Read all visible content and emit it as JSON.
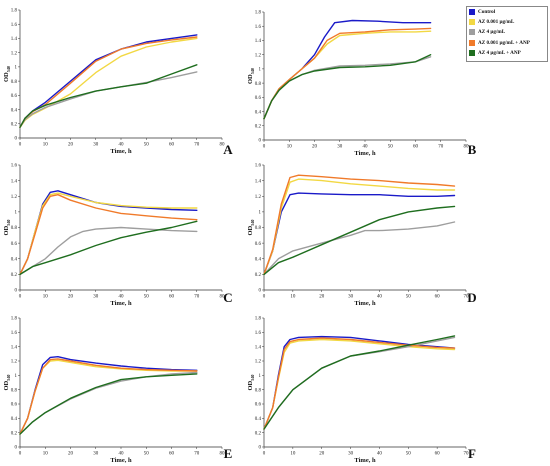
{
  "colors": {
    "control": "#1a1ac8",
    "az_low": "#f2d843",
    "az_high": "#9e9e9e",
    "az_low_anp": "#f07a2a",
    "az_high_anp": "#1f6e1f"
  },
  "legend": {
    "items": [
      {
        "label": "Control",
        "color_key": "control"
      },
      {
        "label": "AZ 0.001 µg/mL",
        "color_key": "az_low"
      },
      {
        "label": "AZ 4 µg/mL",
        "color_key": "az_high"
      },
      {
        "label": "AZ 0.001 µg/mL + ANP",
        "color_key": "az_low_anp"
      },
      {
        "label": "AZ 4 µg/mL + ANP",
        "color_key": "az_high_anp"
      }
    ]
  },
  "chart_data": [
    {
      "type": "line",
      "panel": "A",
      "xlabel": "Time, h",
      "ylabel_main": "OD",
      "ylabel_sub": "540",
      "xlim": [
        0,
        80
      ],
      "xticks": [
        0,
        10,
        20,
        30,
        40,
        50,
        60,
        70,
        80
      ],
      "ylim": [
        0,
        1.8
      ],
      "yticks": [
        0,
        0.2,
        0.4,
        0.6,
        0.8,
        1,
        1.2,
        1.4,
        1.6,
        1.8
      ],
      "series": [
        {
          "color_key": "control",
          "x": [
            0,
            2,
            5,
            10,
            20,
            30,
            40,
            50,
            60,
            70
          ],
          "y": [
            0.15,
            0.28,
            0.38,
            0.5,
            0.8,
            1.1,
            1.25,
            1.35,
            1.4,
            1.45
          ]
        },
        {
          "color_key": "az_low",
          "x": [
            0,
            2,
            5,
            10,
            20,
            30,
            40,
            50,
            60,
            70
          ],
          "y": [
            0.15,
            0.25,
            0.33,
            0.42,
            0.62,
            0.92,
            1.15,
            1.28,
            1.35,
            1.4
          ]
        },
        {
          "color_key": "az_high",
          "x": [
            0,
            2,
            5,
            10,
            20,
            30,
            40,
            50,
            60,
            70
          ],
          "y": [
            0.15,
            0.26,
            0.34,
            0.43,
            0.55,
            0.66,
            0.72,
            0.78,
            0.85,
            0.93
          ]
        },
        {
          "color_key": "az_low_anp",
          "x": [
            0,
            2,
            5,
            10,
            20,
            30,
            40,
            50,
            60,
            70
          ],
          "y": [
            0.15,
            0.28,
            0.37,
            0.47,
            0.77,
            1.08,
            1.25,
            1.33,
            1.38,
            1.42
          ]
        },
        {
          "color_key": "az_high_anp",
          "x": [
            0,
            2,
            5,
            10,
            20,
            30,
            40,
            50,
            60,
            70
          ],
          "y": [
            0.15,
            0.28,
            0.38,
            0.46,
            0.57,
            0.66,
            0.72,
            0.77,
            0.9,
            1.03
          ]
        }
      ]
    },
    {
      "type": "line",
      "panel": "B",
      "xlabel": "Time, h",
      "ylabel_main": "OD",
      "ylabel_sub": "540",
      "xlim": [
        0,
        80
      ],
      "xticks": [
        0,
        10,
        20,
        30,
        40,
        50,
        60,
        70,
        80
      ],
      "ylim": [
        0,
        1.8
      ],
      "yticks": [
        0,
        0.2,
        0.4,
        0.6,
        0.8,
        1,
        1.2,
        1.4,
        1.6,
        1.8
      ],
      "series": [
        {
          "color_key": "control",
          "x": [
            0,
            3,
            6,
            10,
            15,
            20,
            24,
            28,
            35,
            45,
            55,
            66
          ],
          "y": [
            0.3,
            0.55,
            0.72,
            0.85,
            1.0,
            1.2,
            1.45,
            1.65,
            1.68,
            1.67,
            1.65,
            1.65
          ]
        },
        {
          "color_key": "az_low",
          "x": [
            0,
            3,
            6,
            10,
            15,
            20,
            25,
            30,
            40,
            50,
            60,
            66
          ],
          "y": [
            0.3,
            0.55,
            0.72,
            0.85,
            1.0,
            1.15,
            1.35,
            1.47,
            1.5,
            1.52,
            1.52,
            1.53
          ]
        },
        {
          "color_key": "az_high",
          "x": [
            0,
            3,
            6,
            10,
            15,
            20,
            30,
            40,
            50,
            60,
            66
          ],
          "y": [
            0.3,
            0.55,
            0.7,
            0.83,
            0.92,
            0.98,
            1.04,
            1.05,
            1.07,
            1.1,
            1.17
          ]
        },
        {
          "color_key": "az_low_anp",
          "x": [
            0,
            3,
            6,
            10,
            15,
            20,
            25,
            30,
            40,
            50,
            60,
            66
          ],
          "y": [
            0.3,
            0.55,
            0.72,
            0.85,
            1.0,
            1.15,
            1.4,
            1.5,
            1.52,
            1.55,
            1.56,
            1.57
          ]
        },
        {
          "color_key": "az_high_anp",
          "x": [
            0,
            3,
            6,
            10,
            15,
            20,
            30,
            40,
            50,
            60,
            66
          ],
          "y": [
            0.3,
            0.55,
            0.7,
            0.83,
            0.92,
            0.97,
            1.02,
            1.03,
            1.05,
            1.1,
            1.2
          ]
        }
      ]
    },
    {
      "type": "line",
      "panel": "C",
      "xlabel": "Time, h",
      "ylabel_main": "OD",
      "ylabel_sub": "540",
      "xlim": [
        0,
        80
      ],
      "xticks": [
        0,
        10,
        20,
        30,
        40,
        50,
        60,
        70,
        80
      ],
      "ylim": [
        0,
        1.6
      ],
      "yticks": [
        0,
        0.2,
        0.4,
        0.6,
        0.8,
        1,
        1.2,
        1.4,
        1.6
      ],
      "series": [
        {
          "color_key": "control",
          "x": [
            0,
            3,
            6,
            9,
            12,
            15,
            20,
            30,
            40,
            50,
            60,
            70
          ],
          "y": [
            0.2,
            0.4,
            0.75,
            1.1,
            1.25,
            1.27,
            1.22,
            1.12,
            1.07,
            1.05,
            1.03,
            1.02
          ]
        },
        {
          "color_key": "az_low",
          "x": [
            0,
            3,
            6,
            9,
            12,
            15,
            20,
            30,
            40,
            50,
            60,
            70
          ],
          "y": [
            0.2,
            0.4,
            0.75,
            1.08,
            1.22,
            1.24,
            1.2,
            1.12,
            1.08,
            1.06,
            1.05,
            1.05
          ]
        },
        {
          "color_key": "az_high",
          "x": [
            0,
            5,
            10,
            15,
            20,
            25,
            30,
            40,
            50,
            60,
            70
          ],
          "y": [
            0.2,
            0.3,
            0.4,
            0.55,
            0.68,
            0.75,
            0.78,
            0.8,
            0.78,
            0.76,
            0.75
          ]
        },
        {
          "color_key": "az_low_anp",
          "x": [
            0,
            3,
            6,
            9,
            12,
            15,
            20,
            30,
            40,
            50,
            60,
            70
          ],
          "y": [
            0.2,
            0.4,
            0.72,
            1.05,
            1.2,
            1.22,
            1.15,
            1.05,
            0.98,
            0.95,
            0.92,
            0.9
          ]
        },
        {
          "color_key": "az_high_anp",
          "x": [
            0,
            5,
            10,
            20,
            30,
            40,
            50,
            60,
            70
          ],
          "y": [
            0.2,
            0.3,
            0.35,
            0.45,
            0.57,
            0.67,
            0.74,
            0.8,
            0.88
          ]
        }
      ]
    },
    {
      "type": "line",
      "panel": "D",
      "xlabel": "Time, h",
      "ylabel_main": "OD",
      "ylabel_sub": "540",
      "xlim": [
        0,
        70
      ],
      "xticks": [
        0,
        10,
        20,
        30,
        40,
        50,
        60,
        70
      ],
      "ylim": [
        0,
        1.6
      ],
      "yticks": [
        0,
        0.2,
        0.4,
        0.6,
        0.8,
        1,
        1.2,
        1.4,
        1.6
      ],
      "series": [
        {
          "color_key": "control",
          "x": [
            0,
            3,
            6,
            9,
            12,
            20,
            30,
            40,
            50,
            60,
            66
          ],
          "y": [
            0.2,
            0.5,
            1.0,
            1.22,
            1.24,
            1.23,
            1.22,
            1.22,
            1.2,
            1.2,
            1.21
          ]
        },
        {
          "color_key": "az_low",
          "x": [
            0,
            3,
            6,
            9,
            12,
            20,
            30,
            40,
            50,
            60,
            66
          ],
          "y": [
            0.2,
            0.5,
            1.05,
            1.38,
            1.42,
            1.4,
            1.36,
            1.33,
            1.3,
            1.28,
            1.28
          ]
        },
        {
          "color_key": "az_high",
          "x": [
            0,
            5,
            10,
            20,
            30,
            35,
            40,
            50,
            60,
            66
          ],
          "y": [
            0.2,
            0.4,
            0.5,
            0.6,
            0.7,
            0.76,
            0.76,
            0.78,
            0.82,
            0.87
          ]
        },
        {
          "color_key": "az_low_anp",
          "x": [
            0,
            3,
            6,
            9,
            12,
            20,
            30,
            40,
            50,
            60,
            66
          ],
          "y": [
            0.2,
            0.52,
            1.1,
            1.44,
            1.47,
            1.45,
            1.42,
            1.4,
            1.37,
            1.35,
            1.33
          ]
        },
        {
          "color_key": "az_high_anp",
          "x": [
            0,
            5,
            10,
            20,
            30,
            40,
            50,
            60,
            66
          ],
          "y": [
            0.2,
            0.35,
            0.42,
            0.58,
            0.74,
            0.9,
            1.0,
            1.05,
            1.07
          ]
        }
      ]
    },
    {
      "type": "line",
      "panel": "E",
      "xlabel": "Time, h",
      "ylabel_main": "OD",
      "ylabel_sub": "540",
      "xlim": [
        0,
        80
      ],
      "xticks": [
        0,
        10,
        20,
        30,
        40,
        50,
        60,
        70,
        80
      ],
      "ylim": [
        0,
        1.8
      ],
      "yticks": [
        0,
        0.2,
        0.4,
        0.6,
        0.8,
        1,
        1.2,
        1.4,
        1.6,
        1.8
      ],
      "series": [
        {
          "color_key": "control",
          "x": [
            0,
            3,
            6,
            9,
            12,
            15,
            20,
            30,
            40,
            50,
            60,
            70
          ],
          "y": [
            0.18,
            0.4,
            0.8,
            1.15,
            1.25,
            1.26,
            1.22,
            1.17,
            1.13,
            1.1,
            1.08,
            1.07
          ]
        },
        {
          "color_key": "az_low",
          "x": [
            0,
            3,
            6,
            9,
            12,
            15,
            20,
            30,
            40,
            50,
            60,
            70
          ],
          "y": [
            0.18,
            0.4,
            0.78,
            1.1,
            1.2,
            1.21,
            1.18,
            1.12,
            1.09,
            1.07,
            1.06,
            1.06
          ]
        },
        {
          "color_key": "az_high",
          "x": [
            0,
            5,
            10,
            20,
            30,
            40,
            50,
            60,
            70
          ],
          "y": [
            0.18,
            0.35,
            0.48,
            0.67,
            0.82,
            0.92,
            0.98,
            1.02,
            1.04
          ]
        },
        {
          "color_key": "az_low_anp",
          "x": [
            0,
            3,
            6,
            9,
            12,
            15,
            20,
            30,
            40,
            50,
            60,
            70
          ],
          "y": [
            0.18,
            0.4,
            0.78,
            1.1,
            1.22,
            1.23,
            1.2,
            1.14,
            1.1,
            1.08,
            1.07,
            1.06
          ]
        },
        {
          "color_key": "az_high_anp",
          "x": [
            0,
            5,
            10,
            20,
            30,
            40,
            50,
            60,
            70
          ],
          "y": [
            0.18,
            0.35,
            0.48,
            0.68,
            0.83,
            0.94,
            0.98,
            1.0,
            1.02
          ]
        }
      ]
    },
    {
      "type": "line",
      "panel": "F",
      "xlabel": "Time, h",
      "ylabel_main": "OD",
      "ylabel_sub": "540",
      "xlim": [
        0,
        70
      ],
      "xticks": [
        0,
        10,
        20,
        30,
        40,
        50,
        60,
        70
      ],
      "ylim": [
        0,
        1.8
      ],
      "yticks": [
        0,
        0.2,
        0.4,
        0.6,
        0.8,
        1,
        1.2,
        1.4,
        1.6,
        1.8
      ],
      "series": [
        {
          "color_key": "control",
          "x": [
            0,
            3,
            5,
            7,
            9,
            12,
            20,
            30,
            40,
            50,
            60,
            66
          ],
          "y": [
            0.25,
            0.55,
            1.0,
            1.4,
            1.5,
            1.53,
            1.54,
            1.53,
            1.48,
            1.43,
            1.4,
            1.38
          ]
        },
        {
          "color_key": "az_low",
          "x": [
            0,
            3,
            5,
            7,
            9,
            12,
            20,
            30,
            40,
            50,
            60,
            66
          ],
          "y": [
            0.25,
            0.55,
            0.95,
            1.32,
            1.45,
            1.48,
            1.5,
            1.48,
            1.44,
            1.4,
            1.37,
            1.36
          ]
        },
        {
          "color_key": "az_high",
          "x": [
            0,
            5,
            10,
            20,
            30,
            40,
            50,
            60,
            66
          ],
          "y": [
            0.25,
            0.55,
            0.8,
            1.1,
            1.27,
            1.33,
            1.4,
            1.48,
            1.53
          ]
        },
        {
          "color_key": "az_low_anp",
          "x": [
            0,
            3,
            5,
            7,
            9,
            12,
            20,
            30,
            40,
            50,
            60,
            66
          ],
          "y": [
            0.25,
            0.55,
            0.97,
            1.36,
            1.47,
            1.5,
            1.52,
            1.5,
            1.46,
            1.42,
            1.39,
            1.38
          ]
        },
        {
          "color_key": "az_high_anp",
          "x": [
            0,
            5,
            10,
            20,
            30,
            40,
            50,
            60,
            66
          ],
          "y": [
            0.25,
            0.55,
            0.8,
            1.1,
            1.27,
            1.34,
            1.42,
            1.5,
            1.55
          ]
        }
      ]
    }
  ]
}
